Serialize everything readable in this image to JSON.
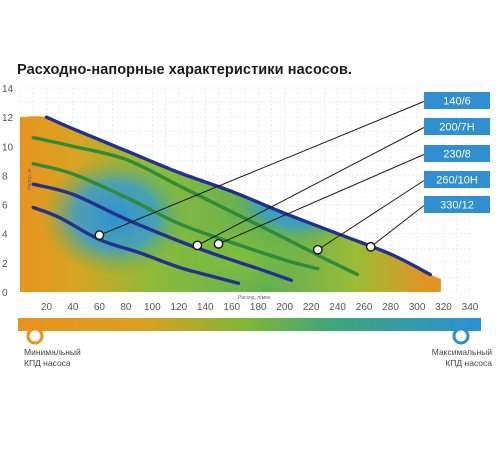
{
  "title": "Расходно-напорные характеристики насосов.",
  "chart_data": {
    "type": "line",
    "title": "Расходно-напорные характеристики насосов.",
    "xlabel": "Расход, л/мин",
    "ylabel": "Напор, м",
    "xlim": [
      0,
      340
    ],
    "ylim": [
      0,
      14
    ],
    "x_ticks": [
      "20",
      "40",
      "60",
      "80",
      "100",
      "120",
      "140",
      "160",
      "180",
      "200",
      "220",
      "240",
      "260",
      "280",
      "300",
      "320",
      "340"
    ],
    "y_ticks": [
      "0",
      "2",
      "4",
      "6",
      "8",
      "10",
      "12",
      "14"
    ],
    "grid": true,
    "background": "efficiency color map (orange = low, blue = high)",
    "series": [
      {
        "name": "140/6",
        "x": [
          10,
          30,
          60,
          90,
          120,
          140,
          165
        ],
        "y": [
          5.8,
          5.1,
          3.6,
          2.7,
          1.7,
          1.2,
          0.6
        ],
        "marker_at": [
          60,
          3.9
        ]
      },
      {
        "name": "200/7H",
        "x": [
          10,
          40,
          80,
          120,
          150,
          180,
          205
        ],
        "y": [
          7.4,
          6.7,
          5.0,
          3.5,
          2.5,
          1.6,
          0.8
        ],
        "marker_at": [
          134,
          3.2
        ]
      },
      {
        "name": "230/8",
        "x": [
          10,
          40,
          80,
          120,
          160,
          200,
          225
        ],
        "y": [
          8.8,
          8.1,
          6.5,
          4.7,
          3.4,
          2.2,
          1.6
        ],
        "marker_at": [
          150,
          3.3
        ]
      },
      {
        "name": "260/10H",
        "x": [
          10,
          40,
          80,
          120,
          160,
          200,
          230,
          255
        ],
        "y": [
          10.6,
          10.0,
          9.1,
          7.3,
          5.5,
          3.7,
          2.3,
          1.2
        ],
        "marker_at": [
          225,
          2.9
        ]
      },
      {
        "name": "330/12",
        "x": [
          20,
          40,
          80,
          120,
          160,
          200,
          240,
          280,
          310
        ],
        "y": [
          12.0,
          11.2,
          9.7,
          8.2,
          6.9,
          5.4,
          4.0,
          2.6,
          1.2
        ],
        "marker_at": [
          265,
          3.1
        ]
      }
    ],
    "legend_position": "right"
  },
  "colors": {
    "low_efficiency": "#e8931e",
    "mid_efficiency": "#6fb33f",
    "high_efficiency": "#2e92d2",
    "curve_dark": "#23308f",
    "curve_green": "#2f8a3b",
    "legend_box": "#2f8fd0",
    "axis_text": "#555555"
  },
  "efficiency_scale": {
    "min_label_line1": "Минимальный",
    "min_label_line2": "КПД насоса",
    "max_label_line1": "Максимальный",
    "max_label_line2": "КПД насоса"
  }
}
